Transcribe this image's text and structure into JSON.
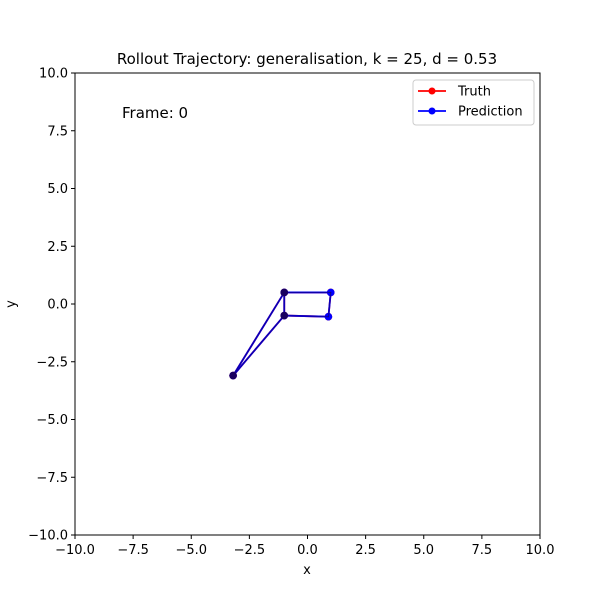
{
  "chart_data": {
    "type": "line",
    "title": "Rollout Trajectory: generalisation, k = 25, d = 0.53",
    "xlabel": "x",
    "ylabel": "y",
    "xlim": [
      -10,
      10
    ],
    "ylim": [
      -10,
      10
    ],
    "xticks": [
      -10,
      -7.5,
      -5,
      -2.5,
      0,
      2.5,
      5,
      7.5,
      10
    ],
    "yticks": [
      -10,
      -7.5,
      -5,
      -2.5,
      0,
      2.5,
      5,
      7.5,
      10
    ],
    "xtick_labels": [
      "−10.0",
      "−7.5",
      "−5.0",
      "−2.5",
      "0.0",
      "2.5",
      "5.0",
      "7.5",
      "10.0"
    ],
    "ytick_labels": [
      "−10.0",
      "−7.5",
      "−5.0",
      "−2.5",
      "0.0",
      "2.5",
      "5.0",
      "7.5",
      "10.0"
    ],
    "grid": false,
    "legend_position": "top-right",
    "annotation": "Frame: 0",
    "series": [
      {
        "name": "Truth",
        "color": "#ff0000",
        "segments": [
          [
            [
              -3.2,
              -3.1
            ],
            [
              -1.0,
              0.5
            ]
          ],
          [
            [
              -3.2,
              -3.1
            ],
            [
              -1.0,
              -0.5
            ]
          ],
          [
            [
              -1.0,
              0.5
            ],
            [
              -1.0,
              -0.5
            ]
          ],
          [
            [
              -1.0,
              0.5
            ],
            [
              1.0,
              0.5
            ]
          ],
          [
            [
              -1.0,
              -0.5
            ],
            [
              0.9,
              -0.55
            ]
          ],
          [
            [
              1.0,
              0.5
            ],
            [
              0.9,
              -0.55
            ]
          ]
        ],
        "points": [
          [
            -3.2,
            -3.1
          ],
          [
            -1.0,
            0.5
          ],
          [
            -1.0,
            -0.5
          ],
          [
            1.0,
            0.5
          ],
          [
            0.9,
            -0.55
          ]
        ]
      },
      {
        "name": "Prediction",
        "color": "#0000ff",
        "segments": [
          [
            [
              -3.2,
              -3.1
            ],
            [
              -1.0,
              0.5
            ]
          ],
          [
            [
              -3.2,
              -3.1
            ],
            [
              -1.0,
              -0.5
            ]
          ],
          [
            [
              -1.0,
              0.5
            ],
            [
              -1.0,
              -0.5
            ]
          ],
          [
            [
              -1.0,
              0.5
            ],
            [
              1.0,
              0.5
            ]
          ],
          [
            [
              -1.0,
              -0.5
            ],
            [
              0.9,
              -0.55
            ]
          ],
          [
            [
              1.0,
              0.5
            ],
            [
              0.9,
              -0.55
            ]
          ]
        ],
        "points": [
          [
            -3.2,
            -3.1
          ],
          [
            -1.0,
            0.5
          ],
          [
            -1.0,
            -0.5
          ],
          [
            1.0,
            0.5
          ],
          [
            0.9,
            -0.55
          ]
        ]
      }
    ],
    "overlap_color": "#1a0060",
    "overlap_points": [
      [
        -3.2,
        -3.1
      ],
      [
        -1.0,
        0.5
      ],
      [
        -1.0,
        -0.5
      ]
    ]
  }
}
